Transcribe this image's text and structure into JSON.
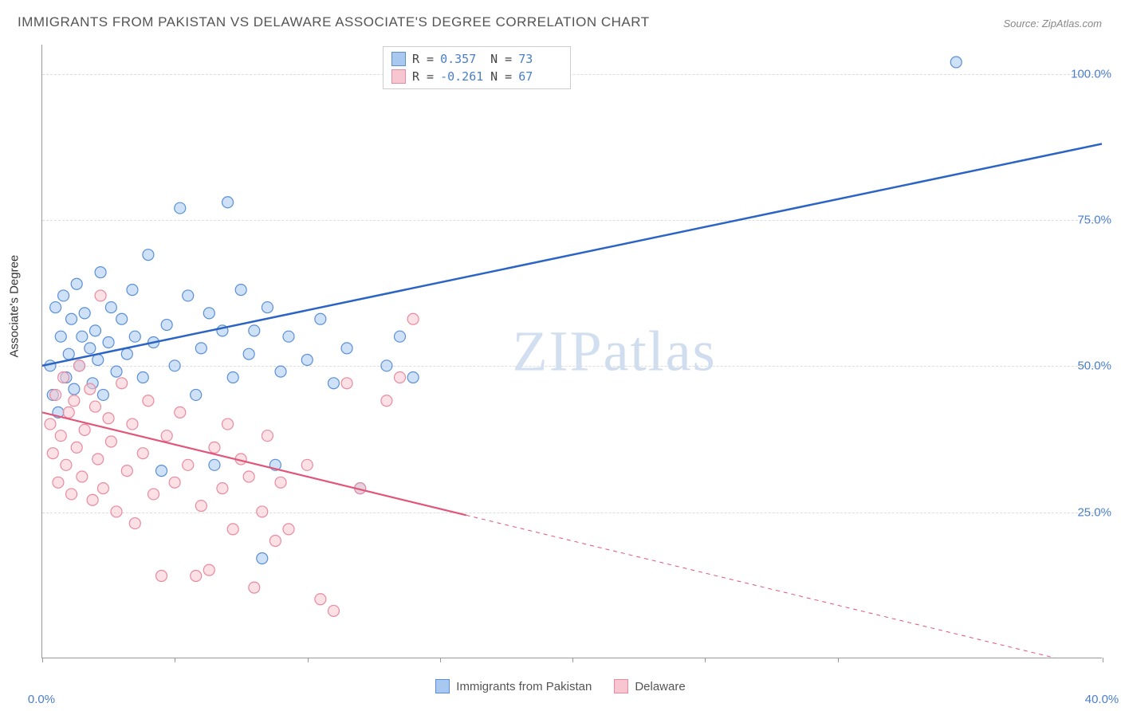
{
  "title": "IMMIGRANTS FROM PAKISTAN VS DELAWARE ASSOCIATE'S DEGREE CORRELATION CHART",
  "source_label": "Source: ZipAtlas.com",
  "watermark": "ZIPatlas",
  "yaxis_label": "Associate's Degree",
  "chart": {
    "type": "scatter",
    "xlim": [
      0,
      40
    ],
    "ylim": [
      0,
      105
    ],
    "xticks": [
      0,
      5,
      10,
      15,
      20,
      25,
      30,
      40
    ],
    "xtick_labels": {
      "0": "0.0%",
      "40": "40.0%"
    },
    "yticks": [
      25,
      50,
      75,
      100
    ],
    "ytick_labels": {
      "25": "25.0%",
      "50": "50.0%",
      "75": "75.0%",
      "100": "100.0%"
    },
    "grid_color": "#dddddd",
    "background_color": "#ffffff",
    "marker_radius": 7,
    "marker_stroke_width": 1.2,
    "marker_opacity": 0.55,
    "series": [
      {
        "name": "Immigrants from Pakistan",
        "color_fill": "#a8c8f0",
        "color_stroke": "#5a8fd6",
        "line_color": "#2b64c5",
        "line_width": 2.5,
        "R": "0.357",
        "N": "73",
        "trend": {
          "x1": 0,
          "y1": 50,
          "x2": 40,
          "y2": 88,
          "dashed_from_x": null
        },
        "points": [
          [
            0.3,
            50
          ],
          [
            0.4,
            45
          ],
          [
            0.5,
            60
          ],
          [
            0.6,
            42
          ],
          [
            0.7,
            55
          ],
          [
            0.8,
            62
          ],
          [
            0.9,
            48
          ],
          [
            1.0,
            52
          ],
          [
            1.1,
            58
          ],
          [
            1.2,
            46
          ],
          [
            1.3,
            64
          ],
          [
            1.4,
            50
          ],
          [
            1.5,
            55
          ],
          [
            1.6,
            59
          ],
          [
            1.8,
            53
          ],
          [
            1.9,
            47
          ],
          [
            2.0,
            56
          ],
          [
            2.1,
            51
          ],
          [
            2.2,
            66
          ],
          [
            2.3,
            45
          ],
          [
            2.5,
            54
          ],
          [
            2.6,
            60
          ],
          [
            2.8,
            49
          ],
          [
            3.0,
            58
          ],
          [
            3.2,
            52
          ],
          [
            3.4,
            63
          ],
          [
            3.5,
            55
          ],
          [
            3.8,
            48
          ],
          [
            4.0,
            69
          ],
          [
            4.2,
            54
          ],
          [
            4.5,
            32
          ],
          [
            4.7,
            57
          ],
          [
            5.0,
            50
          ],
          [
            5.2,
            77
          ],
          [
            5.5,
            62
          ],
          [
            5.8,
            45
          ],
          [
            6.0,
            53
          ],
          [
            6.3,
            59
          ],
          [
            6.5,
            33
          ],
          [
            6.8,
            56
          ],
          [
            7.0,
            78
          ],
          [
            7.2,
            48
          ],
          [
            7.5,
            63
          ],
          [
            7.8,
            52
          ],
          [
            8.0,
            56
          ],
          [
            8.3,
            17
          ],
          [
            8.5,
            60
          ],
          [
            8.8,
            33
          ],
          [
            9.0,
            49
          ],
          [
            9.3,
            55
          ],
          [
            10.0,
            51
          ],
          [
            10.5,
            58
          ],
          [
            11.0,
            47
          ],
          [
            11.5,
            53
          ],
          [
            12.0,
            29
          ],
          [
            13.0,
            50
          ],
          [
            13.5,
            55
          ],
          [
            14.0,
            48
          ],
          [
            15.0,
            102
          ],
          [
            15.5,
            100
          ],
          [
            34.5,
            102
          ]
        ]
      },
      {
        "name": "Delaware",
        "color_fill": "#f7c6d0",
        "color_stroke": "#e88aa0",
        "line_color": "#e25578",
        "line_width": 2.2,
        "R": "-0.261",
        "N": "67",
        "trend": {
          "x1": 0,
          "y1": 42,
          "x2": 40,
          "y2": -2,
          "dashed_from_x": 16
        },
        "points": [
          [
            0.3,
            40
          ],
          [
            0.4,
            35
          ],
          [
            0.5,
            45
          ],
          [
            0.6,
            30
          ],
          [
            0.7,
            38
          ],
          [
            0.8,
            48
          ],
          [
            0.9,
            33
          ],
          [
            1.0,
            42
          ],
          [
            1.1,
            28
          ],
          [
            1.2,
            44
          ],
          [
            1.3,
            36
          ],
          [
            1.4,
            50
          ],
          [
            1.5,
            31
          ],
          [
            1.6,
            39
          ],
          [
            1.8,
            46
          ],
          [
            1.9,
            27
          ],
          [
            2.0,
            43
          ],
          [
            2.1,
            34
          ],
          [
            2.2,
            62
          ],
          [
            2.3,
            29
          ],
          [
            2.5,
            41
          ],
          [
            2.6,
            37
          ],
          [
            2.8,
            25
          ],
          [
            3.0,
            47
          ],
          [
            3.2,
            32
          ],
          [
            3.4,
            40
          ],
          [
            3.5,
            23
          ],
          [
            3.8,
            35
          ],
          [
            4.0,
            44
          ],
          [
            4.2,
            28
          ],
          [
            4.5,
            14
          ],
          [
            4.7,
            38
          ],
          [
            5.0,
            30
          ],
          [
            5.2,
            42
          ],
          [
            5.5,
            33
          ],
          [
            5.8,
            14
          ],
          [
            6.0,
            26
          ],
          [
            6.3,
            15
          ],
          [
            6.5,
            36
          ],
          [
            6.8,
            29
          ],
          [
            7.0,
            40
          ],
          [
            7.2,
            22
          ],
          [
            7.5,
            34
          ],
          [
            7.8,
            31
          ],
          [
            8.0,
            12
          ],
          [
            8.3,
            25
          ],
          [
            8.5,
            38
          ],
          [
            8.8,
            20
          ],
          [
            9.0,
            30
          ],
          [
            9.3,
            22
          ],
          [
            10.0,
            33
          ],
          [
            10.5,
            10
          ],
          [
            11.0,
            8
          ],
          [
            11.5,
            47
          ],
          [
            12.0,
            29
          ],
          [
            13.0,
            44
          ],
          [
            13.5,
            48
          ],
          [
            14.0,
            58
          ]
        ]
      }
    ]
  },
  "legend_top": {
    "rows": [
      {
        "swatch_fill": "#a8c8f0",
        "swatch_stroke": "#5a8fd6",
        "r_label": "R =",
        "r_val": "0.357",
        "n_label": "N =",
        "n_val": "73"
      },
      {
        "swatch_fill": "#f7c6d0",
        "swatch_stroke": "#e88aa0",
        "r_label": "R =",
        "r_val": "-0.261",
        "n_label": "N =",
        "n_val": "67"
      }
    ]
  },
  "legend_bottom": {
    "items": [
      {
        "swatch_fill": "#a8c8f0",
        "swatch_stroke": "#5a8fd6",
        "label": "Immigrants from Pakistan"
      },
      {
        "swatch_fill": "#f7c6d0",
        "swatch_stroke": "#e88aa0",
        "label": "Delaware"
      }
    ]
  }
}
